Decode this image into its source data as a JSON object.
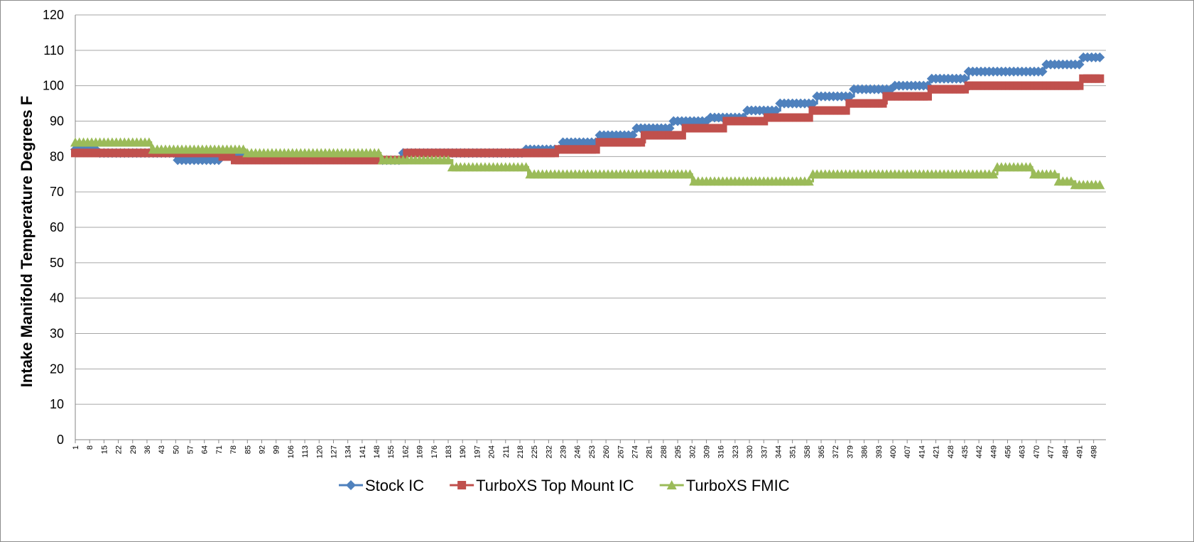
{
  "chart_data": {
    "type": "line",
    "title": "",
    "xlabel": "",
    "ylabel": "Intake Manifold Temperature Degrees F",
    "ylim": [
      0,
      120
    ],
    "yticks": [
      0,
      10,
      20,
      30,
      40,
      50,
      60,
      70,
      80,
      90,
      100,
      110,
      120
    ],
    "xlim": [
      1,
      504
    ],
    "xticks": [
      1,
      8,
      15,
      22,
      29,
      36,
      43,
      50,
      57,
      64,
      71,
      78,
      85,
      92,
      99,
      106,
      113,
      120,
      127,
      134,
      141,
      148,
      155,
      162,
      169,
      176,
      183,
      190,
      197,
      204,
      211,
      218,
      225,
      232,
      239,
      246,
      253,
      260,
      267,
      274,
      281,
      288,
      295,
      302,
      309,
      316,
      323,
      330,
      337,
      344,
      351,
      358,
      365,
      372,
      379,
      386,
      393,
      400,
      407,
      414,
      421,
      428,
      435,
      442,
      449,
      456,
      463,
      470,
      477,
      484,
      491,
      498
    ],
    "grid": true,
    "legend_position": "bottom",
    "series": [
      {
        "name": "Stock IC",
        "color": "#4f81bd",
        "marker": "diamond",
        "x": [
          1,
          12,
          50,
          72,
          78,
          150,
          160,
          220,
          238,
          256,
          274,
          292,
          310,
          328,
          345,
          363,
          381,
          400,
          418,
          437,
          455,
          474,
          492,
          502
        ],
        "y": [
          82,
          81,
          79,
          81,
          80,
          79,
          81,
          82,
          84,
          86,
          88,
          90,
          91,
          93,
          95,
          97,
          99,
          100,
          102,
          104,
          104,
          106,
          108,
          108
        ]
      },
      {
        "name": "TurboXS Top Mount IC",
        "color": "#c0504d",
        "marker": "square",
        "x": [
          1,
          72,
          78,
          150,
          162,
          220,
          236,
          256,
          279,
          298,
          318,
          338,
          360,
          378,
          397,
          418,
          437,
          455,
          492,
          502
        ],
        "y": [
          81,
          80,
          79,
          79,
          81,
          81,
          82,
          84,
          86,
          88,
          90,
          91,
          93,
          95,
          97,
          99,
          100,
          100,
          102,
          102
        ]
      },
      {
        "name": "TurboXS FMIC",
        "color": "#9bbb59",
        "marker": "triangle",
        "x": [
          1,
          38,
          84,
          150,
          185,
          222,
          250,
          302,
          320,
          361,
          390,
          451,
          468,
          474,
          481,
          489,
          502
        ],
        "y": [
          84,
          82,
          81,
          79,
          77,
          75,
          75,
          73,
          73,
          75,
          75,
          77,
          75,
          75,
          73,
          72,
          72
        ]
      }
    ]
  }
}
